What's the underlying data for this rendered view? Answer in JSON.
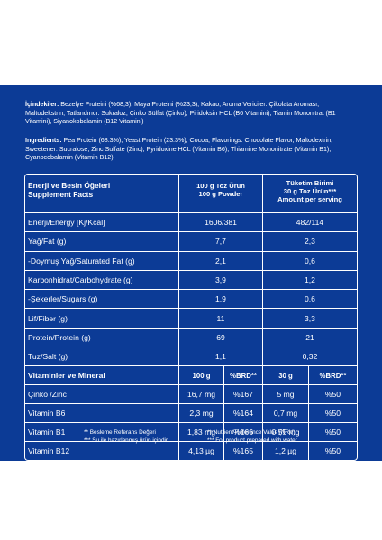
{
  "ingredients_tr": {
    "label": "İçindekiler:",
    "text": " Bezelye Proteini (%68,3), Maya Proteini (%23,3), Kakao, Aroma Vericiler: Çikolata Aroması, Maltodekstrin, Tatlandırıcı: Sukraloz, Çinko Sülfat (Çinko), Piridoksin HCL (B6 Vitamini), Tiamin Mononitrat (B1 Vitamini), Siyanokobalamin (B12 Vitamini)"
  },
  "ingredients_en": {
    "label": "Ingredients:",
    "text": " Pea Protein (68.3%), Yeast Protein (23.3%), Cocoa, Flavorings: Chocolate Flavor, Maltodextrin, Sweetener: Sucralose, Zinc Sulfate (Zinc), Pyridoxine HCL (Vitamin B6), Thiamine Mononitrate (Vitamin B1), Cyanocobalamin (Vitamin B12)"
  },
  "table": {
    "header": {
      "col1_line1": "Enerji ve Besin Öğeleri",
      "col1_line2": "Supplement Facts",
      "col2_line1": "100 g Toz Ürün",
      "col2_line2": "100 g Powder",
      "col3_line1": "Tüketim Birimi",
      "col3_line2": "30 g Toz Ürün***",
      "col3_line3": "Amount per serving"
    },
    "nutrients": [
      {
        "name": "Enerji/Energy [Kj/Kcal]",
        "per100": "1606/381",
        "perServing": "482/114"
      },
      {
        "name": "Yağ/Fat (g)",
        "per100": "7,7",
        "perServing": "2,3"
      },
      {
        "name": "-Doymuş Yağ/Saturated Fat (g)",
        "per100": "2,1",
        "perServing": "0,6"
      },
      {
        "name": "Karbonhidrat/Carbohydrate (g)",
        "per100": "3,9",
        "perServing": "1,2"
      },
      {
        "name": "-Şekerler/Sugars (g)",
        "per100": "1,9",
        "perServing": "0,6"
      },
      {
        "name": "Lif/Fiber (g)",
        "per100": "11",
        "perServing": "3,3"
      },
      {
        "name": "Protein/Protein (g)",
        "per100": "69",
        "perServing": "21"
      },
      {
        "name": "Tuz/Salt (g)",
        "per100": "1,1",
        "perServing": "0,32"
      }
    ],
    "vitamin_header": {
      "name": "Vitaminler ve Mineral",
      "col_100g": "100 g",
      "col_brd1": "%BRD**",
      "col_30g": "30 g",
      "col_brd2": "%BRD**"
    },
    "vitamins": [
      {
        "name": "Çinko /Zinc",
        "v100": "16,7 mg",
        "brd100": "%167",
        "v30": "5 mg",
        "brd30": "%50"
      },
      {
        "name": "Vitamin B6",
        "v100": "2,3 mg",
        "brd100": "%164",
        "v30": "0,7 mg",
        "brd30": "%50"
      },
      {
        "name": "Vitamin B1",
        "v100": "1,83 mg",
        "brd100": "%166",
        "v30": "0,55 mg",
        "brd30": "%50"
      },
      {
        "name": "Vitamin B12",
        "v100": "4,13 µg",
        "brd100": "%165",
        "v30": "1,2 µg",
        "brd30": "%50"
      }
    ]
  },
  "footnotes": {
    "left1": "** Besleme Referans Değeri",
    "left2": "*** Su ile hazırlanmış ürün içindir.",
    "right1": "** Nutrient Reference Value (NRV)",
    "right2": "*** For product prepared with water."
  }
}
